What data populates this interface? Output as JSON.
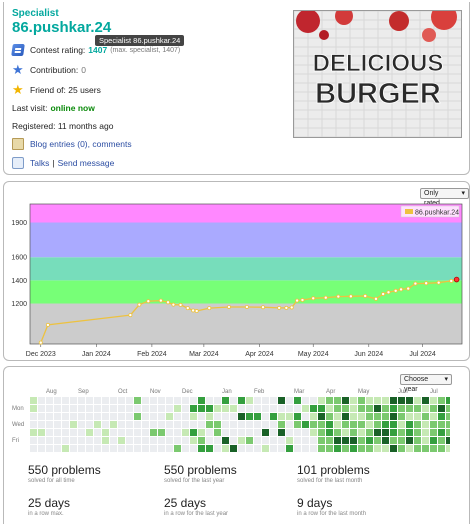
{
  "profile": {
    "rank": "Specialist",
    "handle": "86.pushkar.24",
    "tooltip": "Specialist 86.pushkar.24",
    "contest_rating_label": "Contest rating:",
    "contest_rating_value": "1407",
    "contest_rating_max": "(max. specialist, 1407)",
    "contribution_label": "Contribution:",
    "contribution_value": "0",
    "friends_label": "Friend of: 25 users",
    "last_visit_label": "Last visit:",
    "last_visit_value": "online now",
    "registered_label": "Registered: 11 months ago",
    "blog_label": "Blog entries (0), comments",
    "talks_label": "Talks",
    "send_message_label": "Send message",
    "avatar_line1": "DELICIOUS",
    "avatar_line2": "BURGER"
  },
  "rating_graph": {
    "filter_label": "Only rated",
    "legend_label": "86.pushkar.24"
  },
  "chart_data": {
    "type": "line",
    "series": [
      {
        "name": "86.pushkar.24",
        "x": [
          "2023-12-01",
          "2023-12-05",
          "2024-01-20",
          "2024-01-25",
          "2024-01-30",
          "2024-02-06",
          "2024-02-10",
          "2024-02-13",
          "2024-02-17",
          "2024-02-21",
          "2024-02-24",
          "2024-02-26",
          "2024-03-04",
          "2024-03-15",
          "2024-03-25",
          "2024-04-03",
          "2024-04-12",
          "2024-04-16",
          "2024-04-19",
          "2024-04-22",
          "2024-04-25",
          "2024-05-01",
          "2024-05-08",
          "2024-05-15",
          "2024-05-22",
          "2024-05-30",
          "2024-06-05",
          "2024-06-09",
          "2024-06-12",
          "2024-06-16",
          "2024-06-19",
          "2024-06-23",
          "2024-06-27",
          "2024-07-03",
          "2024-07-10",
          "2024-07-17",
          "2024-07-20"
        ],
        "values": [
          862,
          1015,
          1100,
          1190,
          1220,
          1225,
          1210,
          1190,
          1188,
          1160,
          1140,
          1135,
          1160,
          1170,
          1170,
          1168,
          1162,
          1162,
          1166,
          1225,
          1230,
          1245,
          1250,
          1260,
          1262,
          1265,
          1240,
          1282,
          1297,
          1310,
          1322,
          1329,
          1372,
          1375,
          1380,
          1395,
          1407
        ]
      }
    ],
    "x_ticks": [
      "Dec 2023",
      "Jan 2024",
      "Feb 2024",
      "Mar 2024",
      "Apr 2024",
      "May 2024",
      "Jun 2024",
      "Jul 2024"
    ],
    "y_ticks": [
      1200,
      1400,
      1600,
      1900
    ],
    "ylim": [
      850,
      2060
    ],
    "bands": [
      {
        "from": 850,
        "to": 1200,
        "color": "#cccccc"
      },
      {
        "from": 1200,
        "to": 1400,
        "color": "#77ff77"
      },
      {
        "from": 1400,
        "to": 1600,
        "color": "#77ddbb"
      },
      {
        "from": 1600,
        "to": 1900,
        "color": "#aaaaff"
      },
      {
        "from": 1900,
        "to": 2060,
        "color": "#ff88ff"
      }
    ],
    "line_color": "#edc240",
    "grid": false,
    "legend_position": "top-right"
  },
  "activity": {
    "year_select": "Choose year",
    "months": [
      "Aug",
      "Sep",
      "Oct",
      "Nov",
      "Dec",
      "Jan",
      "Feb",
      "Mar",
      "Apr",
      "May",
      "Jun",
      "Jul"
    ],
    "weekday_labels": [
      "Mon",
      "Wed",
      "Fri"
    ],
    "stats": [
      {
        "num": "550 problems",
        "desc": "solved for all time"
      },
      {
        "num": "550 problems",
        "desc": "solved for the last year"
      },
      {
        "num": "101 problems",
        "desc": "solved for the last month"
      },
      {
        "num": "25 days",
        "desc": "in a row max."
      },
      {
        "num": "25 days",
        "desc": "in a row for the last year"
      },
      {
        "num": "9 days",
        "desc": "in a row for the last month"
      }
    ],
    "color_scale": [
      "#ebedf0",
      "#c6e9b4",
      "#7bc96f",
      "#349f3e",
      "#196127"
    ]
  }
}
